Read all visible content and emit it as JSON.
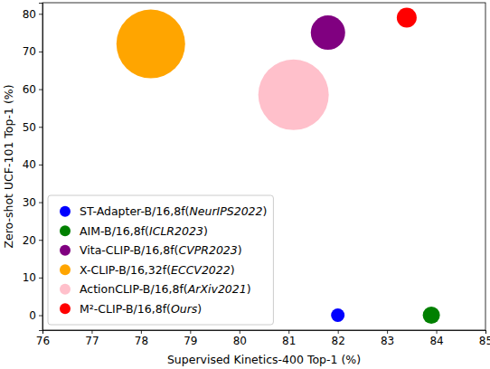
{
  "chart_data": {
    "type": "scatter",
    "x_label": "Supervised Kinetics-400 Top-1 (%)",
    "y_label": "Zero-shot UCF-101 Top-1 (%)",
    "xlim": [
      76,
      85
    ],
    "xticks": [
      76,
      77,
      78,
      79,
      80,
      81,
      82,
      83,
      84,
      85
    ],
    "ylim": [
      -3.95,
      82.95
    ],
    "yticks": [
      0,
      10,
      20,
      30,
      40,
      50,
      60,
      70,
      80
    ],
    "legend": "lower left",
    "series": [
      {
        "name": "ST-Adapter-B/16,8f(NeurIPS2022)",
        "color": "blue",
        "marker": "circle",
        "x": [
          82.0
        ],
        "values": [
          0
        ],
        "sizes": [
          56
        ]
      },
      {
        "name": "AIM-B/16,8f(ICLR2023)",
        "color": "green",
        "marker": "circle",
        "x": [
          83.9
        ],
        "values": [
          0
        ],
        "sizes": [
          90
        ]
      },
      {
        "name": "Vita-CLIP-B/16,8f(CVPR2023)",
        "color": "purple",
        "marker": "circle",
        "x": [
          81.8
        ],
        "values": [
          75
        ],
        "sizes": [
          361
        ]
      },
      {
        "name": "X-CLIP-B/16,32f(ECCV2022)",
        "color": "orange",
        "marker": "circle",
        "x": [
          78.2
        ],
        "values": [
          72
        ],
        "sizes": [
          1444
        ]
      },
      {
        "name": "ActionCLIP-B/16,8f(ArXiv2021)",
        "color": "pink",
        "marker": "circle",
        "x": [
          81.1
        ],
        "values": [
          58.5
        ],
        "sizes": [
          1521
        ]
      },
      {
        "name": "M²-CLIP-B/16,8f(Ours)",
        "color": "red",
        "marker": "circle",
        "x": [
          83.4
        ],
        "values": [
          79
        ],
        "sizes": [
          121
        ]
      }
    ]
  }
}
